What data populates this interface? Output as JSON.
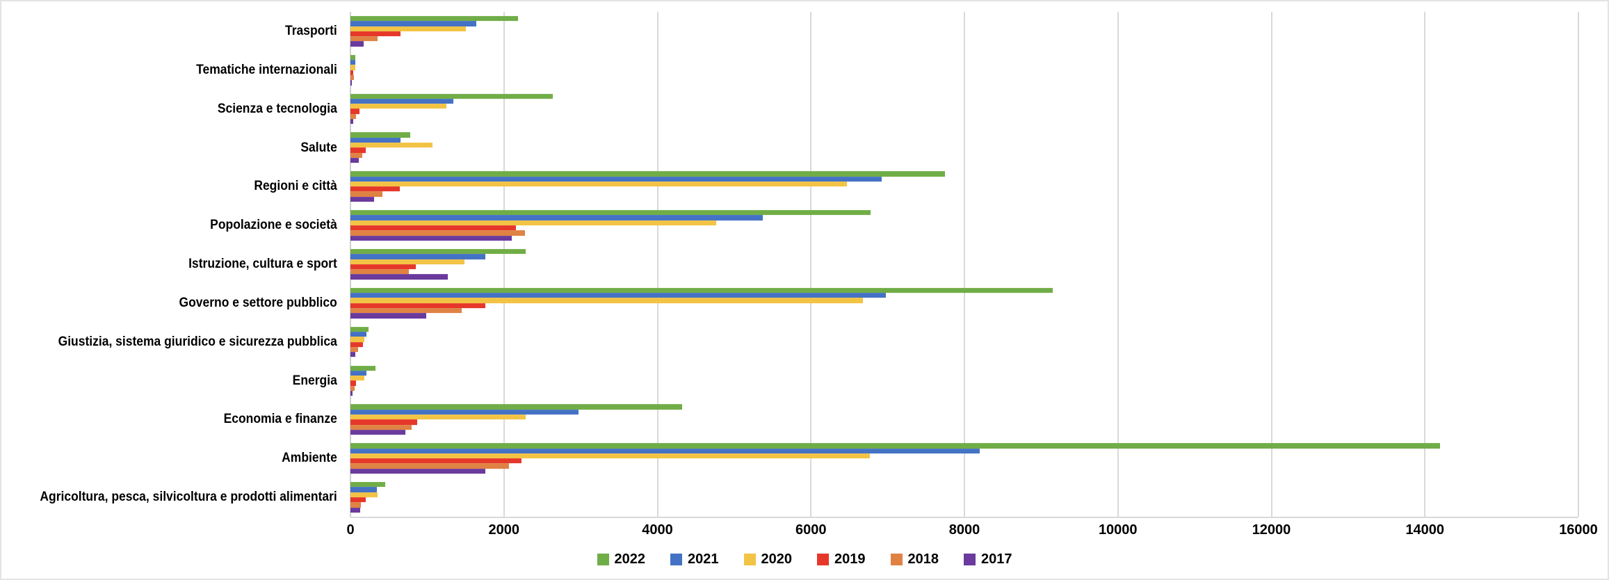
{
  "chart_data": {
    "type": "bar",
    "orientation": "horizontal",
    "title": "",
    "categories": [
      "Trasporti",
      "Tematiche internazionali",
      "Scienza e tecnologia",
      "Salute",
      "Regioni e città",
      "Popolazione e società",
      "Istruzione, cultura e sport",
      "Governo e settore pubblico",
      "Giustizia, sistema giuridico e sicurezza pubblica",
      "Energia",
      "Economia e finanze",
      "Ambiente",
      "Agricoltura, pesca, silvicoltura e prodotti alimentari"
    ],
    "series": [
      {
        "name": "2022",
        "color": "#70AD47",
        "values": [
          2180,
          60,
          2640,
          780,
          7750,
          6780,
          2280,
          9150,
          240,
          330,
          4320,
          14200,
          450
        ]
      },
      {
        "name": "2021",
        "color": "#4472C4",
        "values": [
          1640,
          60,
          1340,
          655,
          6920,
          5370,
          1760,
          6980,
          210,
          210,
          2970,
          8200,
          340
        ]
      },
      {
        "name": "2020",
        "color": "#F2C344",
        "values": [
          1500,
          65,
          1250,
          1070,
          6470,
          4770,
          1490,
          6680,
          180,
          180,
          2280,
          6770,
          350
        ]
      },
      {
        "name": "2019",
        "color": "#E5382A",
        "values": [
          650,
          40,
          120,
          195,
          640,
          2155,
          855,
          1760,
          160,
          75,
          870,
          2230,
          195
        ]
      },
      {
        "name": "2018",
        "color": "#DF8244",
        "values": [
          355,
          45,
          75,
          150,
          420,
          2270,
          760,
          1450,
          100,
          55,
          800,
          2070,
          140
        ]
      },
      {
        "name": "2017",
        "color": "#6A3A9D",
        "values": [
          175,
          10,
          40,
          110,
          310,
          2100,
          1270,
          990,
          60,
          30,
          720,
          1760,
          130
        ]
      }
    ],
    "xlim": [
      0,
      16000
    ],
    "xticks": [
      0,
      2000,
      4000,
      6000,
      8000,
      10000,
      12000,
      14000,
      16000
    ],
    "xtick_labels": [
      "0",
      "2000",
      "4000",
      "6000",
      "8000",
      "10000",
      "12000",
      "14000",
      "16000"
    ],
    "legend_position": "bottom-center",
    "grid": "vertical",
    "colors": {
      "gridline": "#D9D9D9",
      "axis": "#CFCFCF",
      "text": "#000000",
      "background": "#FFFFFF"
    }
  }
}
